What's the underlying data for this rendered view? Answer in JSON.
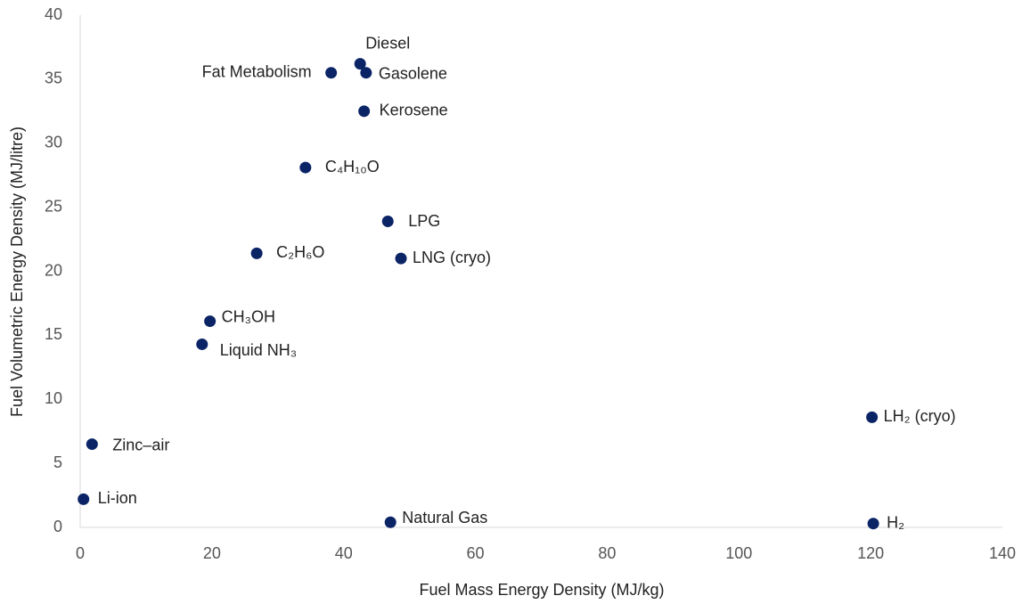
{
  "chart_data": {
    "type": "scatter",
    "xlabel": "Fuel Mass Energy Density (MJ/kg)",
    "ylabel": "Fuel Volumetric Energy Density (MJ/litre)",
    "color": "#0b2466",
    "labels": [
      "Diesel",
      "Fat Metabolism",
      "Gasolene",
      "Kerosene",
      "C₄H₁₀O",
      "LPG",
      "LNG (cryo)",
      "C₂H₆O",
      "CH₃OH",
      "Liquid NH₃",
      "LH₂ (cryo)",
      "Zinc–air",
      "Li-ion",
      "Natural Gas",
      "H₂"
    ],
    "x": [
      42.5,
      38.1,
      43.4,
      43.1,
      34.2,
      46.7,
      48.7,
      26.8,
      19.7,
      18.5,
      120.2,
      1.8,
      0.5,
      47.1,
      120.4
    ],
    "values": [
      36.2,
      35.5,
      35.5,
      32.5,
      28.1,
      23.9,
      21.0,
      21.4,
      16.1,
      14.3,
      8.6,
      6.5,
      2.2,
      0.4,
      0.3
    ],
    "xlim": [
      0,
      140
    ],
    "xticks": [
      0,
      20,
      40,
      60,
      80,
      100,
      120,
      140
    ],
    "ylim": [
      0,
      40
    ],
    "yticks": [
      0,
      5,
      10,
      15,
      20,
      25,
      30,
      35,
      40
    ]
  }
}
